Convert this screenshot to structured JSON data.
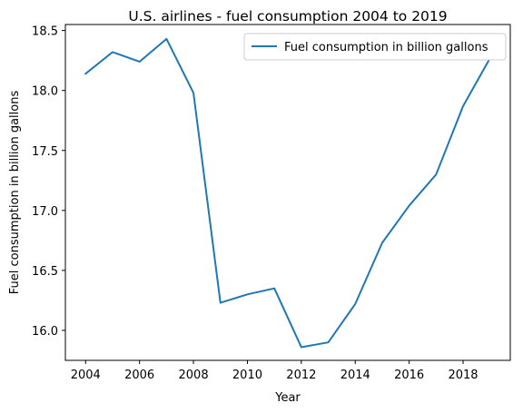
{
  "chart_data": {
    "type": "line",
    "title": "U.S. airlines - fuel consumption 2004 to 2019",
    "xlabel": "Year",
    "ylabel": "Fuel consumption in billion gallons",
    "x": [
      2004,
      2005,
      2006,
      2007,
      2008,
      2009,
      2010,
      2011,
      2012,
      2013,
      2014,
      2015,
      2016,
      2017,
      2018,
      2019
    ],
    "series": [
      {
        "name": "Fuel consumption in billion gallons",
        "values": [
          18.14,
          18.32,
          18.24,
          18.43,
          17.98,
          16.23,
          16.3,
          16.35,
          15.86,
          15.9,
          16.22,
          16.73,
          17.04,
          17.3,
          17.87,
          18.27
        ],
        "color": "#1f77b4"
      }
    ],
    "xlim": [
      2003.25,
      2019.75
    ],
    "ylim": [
      15.75,
      18.55
    ],
    "xticks": [
      2004,
      2006,
      2008,
      2010,
      2012,
      2014,
      2016,
      2018
    ],
    "xtick_labels": [
      "2004",
      "2006",
      "2008",
      "2010",
      "2012",
      "2014",
      "2016",
      "2018"
    ],
    "yticks": [
      16.0,
      16.5,
      17.0,
      17.5,
      18.0,
      18.5
    ],
    "ytick_labels": [
      "16.0",
      "16.5",
      "17.0",
      "17.5",
      "18.0",
      "18.5"
    ],
    "legend": "top-right",
    "grid": false
  }
}
